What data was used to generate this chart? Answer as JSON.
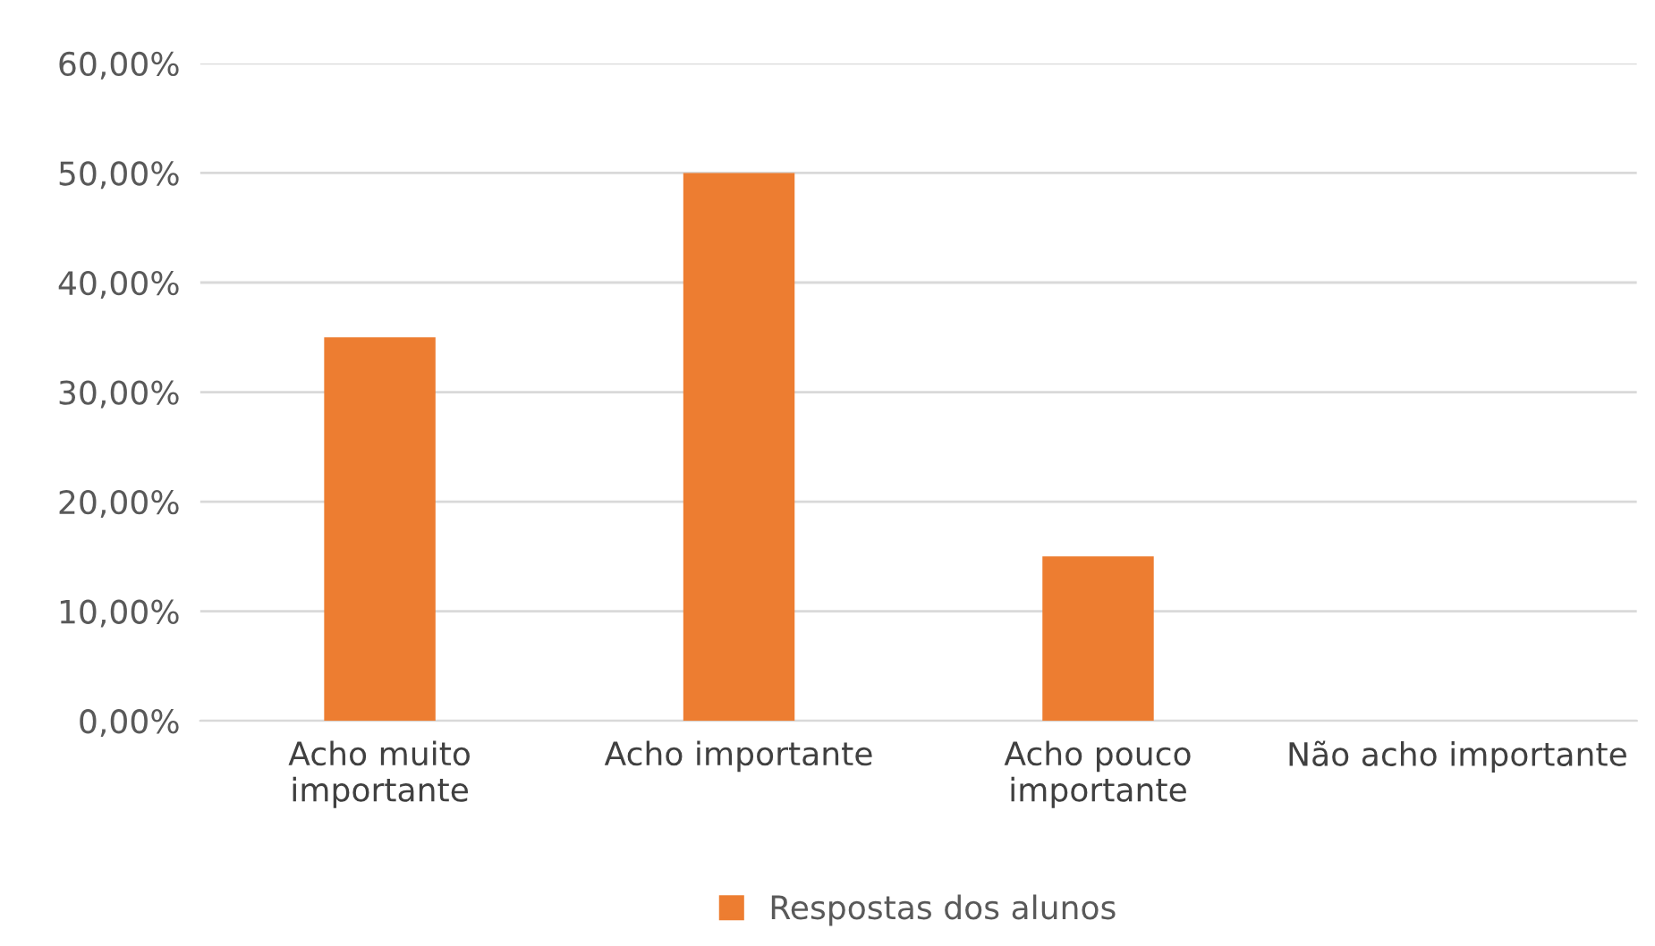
{
  "chart_data": {
    "type": "bar",
    "categories": [
      "Acho muito\nimportante",
      "Acho importante",
      "Acho pouco\nimportante",
      "Não acho importante"
    ],
    "series": [
      {
        "name": "Respostas dos alunos",
        "color": "#ed7d31",
        "values": [
          35,
          50,
          15,
          0
        ]
      }
    ],
    "ylim": [
      0,
      60
    ],
    "yticks": [
      {
        "value": 0,
        "label": "0,00%"
      },
      {
        "value": 10,
        "label": "10,00%"
      },
      {
        "value": 20,
        "label": "20,00%"
      },
      {
        "value": 30,
        "label": "30,00%"
      },
      {
        "value": 40,
        "label": "40,00%"
      },
      {
        "value": 50,
        "label": "50,00%"
      },
      {
        "value": 60,
        "label": "60,00%"
      }
    ],
    "grid": "y",
    "legend": "bottom"
  }
}
